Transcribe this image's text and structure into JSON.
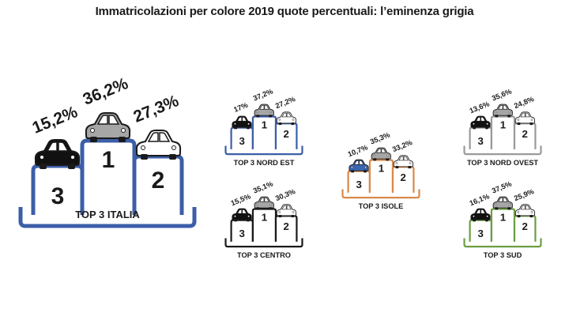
{
  "title": "Immatricolazioni per colore 2019 quote percentuali: l’eminenza grigia",
  "colors": {
    "nero": "#111111",
    "grigio": "#a6a6a6",
    "bianco": "#ffffff",
    "blu": "#3a67b0",
    "rosso": "#c0392b"
  },
  "chart_data": [
    {
      "type": "bar",
      "name": "italia",
      "label": "TOP 3 ITALIA",
      "podium_color": "#3c5ea8",
      "places": [
        {
          "rank": "3",
          "value": 15.2,
          "value_label": "15,2%",
          "car_color": "#111111"
        },
        {
          "rank": "1",
          "value": 36.2,
          "value_label": "36,2%",
          "car_color": "#a6a6a6"
        },
        {
          "rank": "2",
          "value": 27.3,
          "value_label": "27,3%",
          "car_color": "#ffffff"
        }
      ]
    },
    {
      "type": "bar",
      "name": "nord-est",
      "label": "TOP 3 NORD EST",
      "podium_color": "#3c5ea8",
      "places": [
        {
          "rank": "3",
          "value": 17.0,
          "value_label": "17%",
          "car_color": "#111111"
        },
        {
          "rank": "1",
          "value": 37.2,
          "value_label": "37,2%",
          "car_color": "#a6a6a6"
        },
        {
          "rank": "2",
          "value": 27.2,
          "value_label": "27,2%",
          "car_color": "#ffffff"
        }
      ]
    },
    {
      "type": "bar",
      "name": "centro",
      "label": "TOP 3 CENTRO",
      "podium_color": "#1a1a1a",
      "places": [
        {
          "rank": "3",
          "value": 15.5,
          "value_label": "15,5%",
          "car_color": "#111111"
        },
        {
          "rank": "1",
          "value": 35.1,
          "value_label": "35,1%",
          "car_color": "#a6a6a6"
        },
        {
          "rank": "2",
          "value": 30.3,
          "value_label": "30,3%",
          "car_color": "#ffffff"
        }
      ]
    },
    {
      "type": "bar",
      "name": "isole",
      "label": "TOP 3 ISOLE",
      "podium_color": "#d9894a",
      "places": [
        {
          "rank": "3",
          "value": 10.7,
          "value_label": "10,7%",
          "car_color": "#3a67b0"
        },
        {
          "rank": "1",
          "value": 35.3,
          "value_label": "35,3%",
          "car_color": "#a6a6a6"
        },
        {
          "rank": "2",
          "value": 33.2,
          "value_label": "33,2%",
          "car_color": "#ffffff"
        }
      ]
    },
    {
      "type": "bar",
      "name": "nord-ovest",
      "label": "TOP 3 NORD OVEST",
      "podium_color": "#9a9a9a",
      "places": [
        {
          "rank": "3",
          "value": 13.6,
          "value_label": "13,6%",
          "car_color": "#111111"
        },
        {
          "rank": "1",
          "value": 35.6,
          "value_label": "35,6%",
          "car_color": "#a6a6a6"
        },
        {
          "rank": "2",
          "value": 24.8,
          "value_label": "24,8%",
          "car_color": "#ffffff"
        }
      ]
    },
    {
      "type": "bar",
      "name": "sud",
      "label": "TOP 3 SUD",
      "podium_color": "#6a9e43",
      "places": [
        {
          "rank": "3",
          "value": 16.1,
          "value_label": "16,1%",
          "car_color": "#111111"
        },
        {
          "rank": "1",
          "value": 37.5,
          "value_label": "37,5%",
          "car_color": "#a6a6a6"
        },
        {
          "rank": "2",
          "value": 25.9,
          "value_label": "25,9%",
          "car_color": "#ffffff"
        }
      ]
    }
  ]
}
